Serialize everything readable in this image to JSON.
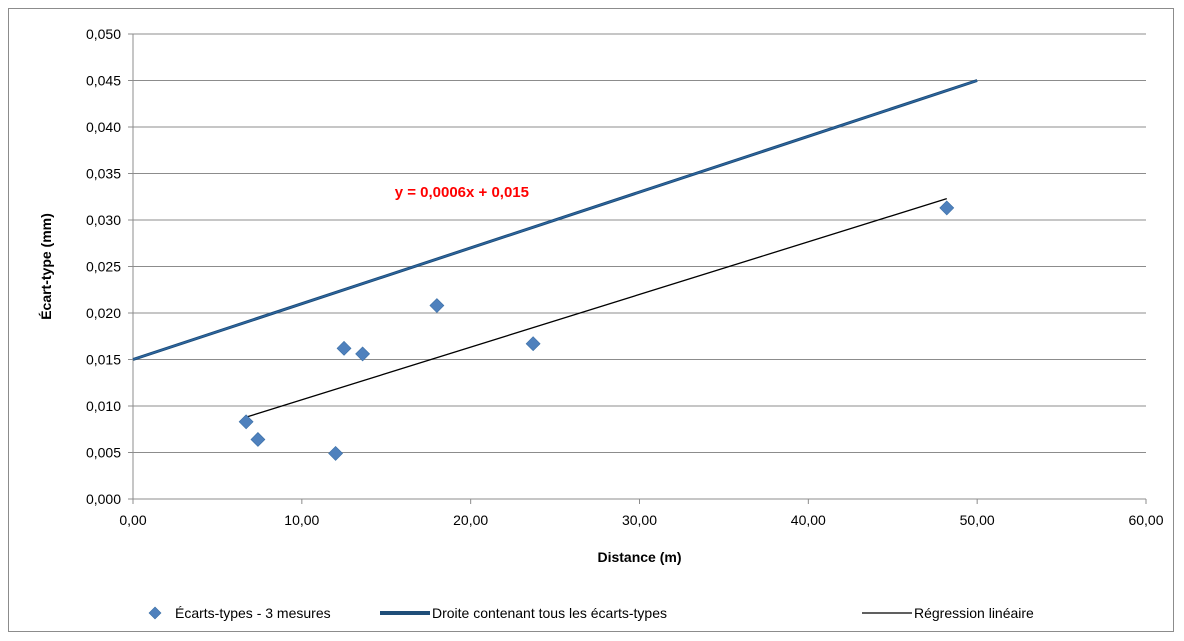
{
  "chart_data": {
    "type": "scatter",
    "title": "",
    "xlabel": "Distance (m)",
    "ylabel": "Écart-type (mm)",
    "xlim": [
      0,
      60
    ],
    "ylim": [
      0,
      0.05
    ],
    "x_ticks": [
      0,
      10,
      20,
      30,
      40,
      50,
      60
    ],
    "x_tick_labels": [
      "0,00",
      "10,00",
      "20,00",
      "30,00",
      "40,00",
      "50,00",
      "60,00"
    ],
    "y_ticks": [
      0,
      0.005,
      0.01,
      0.015,
      0.02,
      0.025,
      0.03,
      0.035,
      0.04,
      0.045,
      0.05
    ],
    "y_tick_labels": [
      "0,000",
      "0,005",
      "0,010",
      "0,015",
      "0,020",
      "0,025",
      "0,030",
      "0,035",
      "0,040",
      "0,045",
      "0,050"
    ],
    "grid": "horizontal",
    "legend_position": "bottom",
    "series": [
      {
        "name": "Écarts-types - 3 mesures",
        "type": "scatter",
        "marker": "diamond",
        "color": "#4f81bd",
        "points": [
          [
            6.7,
            0.0083
          ],
          [
            7.4,
            0.0064
          ],
          [
            12.0,
            0.0049
          ],
          [
            12.5,
            0.0162
          ],
          [
            13.6,
            0.0156
          ],
          [
            18.0,
            0.0208
          ],
          [
            23.7,
            0.0167
          ],
          [
            48.2,
            0.0313
          ]
        ]
      },
      {
        "name": "Droite contenant tous les écarts-types",
        "type": "line",
        "color": "#1f4e79",
        "points": [
          [
            0,
            0.015
          ],
          [
            50,
            0.045
          ]
        ]
      },
      {
        "name": "Régression linéaire",
        "type": "line",
        "color": "#000000",
        "points": [
          [
            6.7,
            0.0088
          ],
          [
            48.2,
            0.0323
          ]
        ]
      }
    ],
    "annotations": [
      {
        "text": "y = 0,0006x + 0,015",
        "x": 15.5,
        "y": 0.0325,
        "color": "#ff0000"
      }
    ]
  }
}
